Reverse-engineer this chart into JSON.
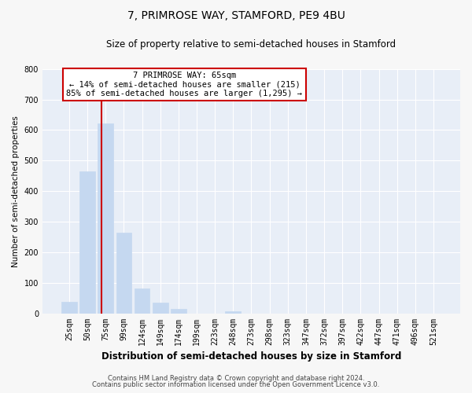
{
  "title": "7, PRIMROSE WAY, STAMFORD, PE9 4BU",
  "subtitle": "Size of property relative to semi-detached houses in Stamford",
  "xlabel": "Distribution of semi-detached houses by size in Stamford",
  "ylabel": "Number of semi-detached properties",
  "categories": [
    "25sqm",
    "50sqm",
    "75sqm",
    "99sqm",
    "124sqm",
    "149sqm",
    "174sqm",
    "199sqm",
    "223sqm",
    "248sqm",
    "273sqm",
    "298sqm",
    "323sqm",
    "347sqm",
    "372sqm",
    "397sqm",
    "422sqm",
    "447sqm",
    "471sqm",
    "496sqm",
    "521sqm"
  ],
  "values": [
    38,
    465,
    623,
    265,
    82,
    36,
    14,
    0,
    0,
    7,
    0,
    0,
    0,
    0,
    0,
    0,
    0,
    0,
    0,
    0,
    0
  ],
  "bar_color": "#c5d8f0",
  "bar_edge_color": "#c5d8f0",
  "marker_color": "#cc0000",
  "annotation_line1": "7 PRIMROSE WAY: 65sqm",
  "annotation_line2": "← 14% of semi-detached houses are smaller (215)",
  "annotation_line3": "85% of semi-detached houses are larger (1,295) →",
  "box_color": "#cc0000",
  "ylim": [
    0,
    800
  ],
  "yticks": [
    0,
    100,
    200,
    300,
    400,
    500,
    600,
    700,
    800
  ],
  "footer1": "Contains HM Land Registry data © Crown copyright and database right 2024.",
  "footer2": "Contains public sector information licensed under the Open Government Licence v3.0.",
  "fig_bg_color": "#f7f7f7",
  "plot_bg_color": "#e8eef7",
  "grid_color": "#ffffff",
  "title_fontsize": 10,
  "subtitle_fontsize": 8.5,
  "tick_fontsize": 7,
  "ylabel_fontsize": 7.5,
  "xlabel_fontsize": 8.5,
  "annotation_fontsize": 7.5,
  "footer_fontsize": 6
}
